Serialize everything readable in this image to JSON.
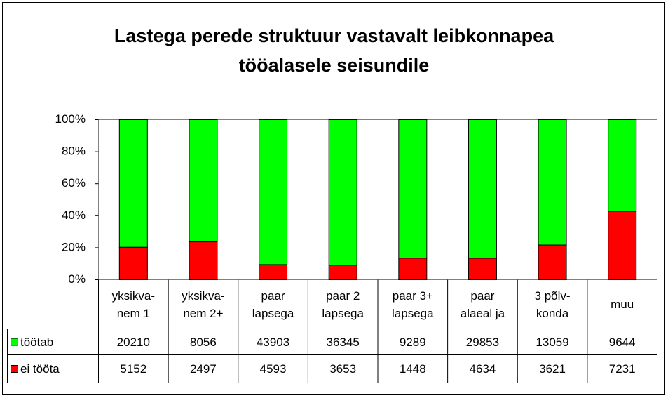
{
  "chart_data": {
    "type": "stacked_percent_bar",
    "title": "Lastega perede struktuur vastavalt leibkonnapea\ntööalasele seisundile",
    "categories": [
      "yksikva-\nnem 1",
      "yksikva-\nnem 2+",
      "paar\nlapsega",
      "paar 2\nlapsega",
      "paar 3+\nlapsega",
      "paar\nalaeal ja",
      "3 põlv-\nkonda",
      "muu"
    ],
    "series": [
      {
        "name": "töötab",
        "color": "#00ff00",
        "values": [
          20210,
          8056,
          43903,
          36345,
          9289,
          29853,
          13059,
          9644
        ]
      },
      {
        "name": "ei tööta",
        "color": "#ff0000",
        "values": [
          5152,
          2497,
          4593,
          3653,
          1448,
          4634,
          3621,
          7231
        ]
      }
    ],
    "ylim": [
      0,
      100
    ],
    "yticks": [
      {
        "value": 0,
        "label": "0%"
      },
      {
        "value": 20,
        "label": "20%"
      },
      {
        "value": 40,
        "label": "40%"
      },
      {
        "value": 60,
        "label": "60%"
      },
      {
        "value": 80,
        "label": "80%"
      },
      {
        "value": 100,
        "label": "100%"
      }
    ],
    "grid": false
  }
}
